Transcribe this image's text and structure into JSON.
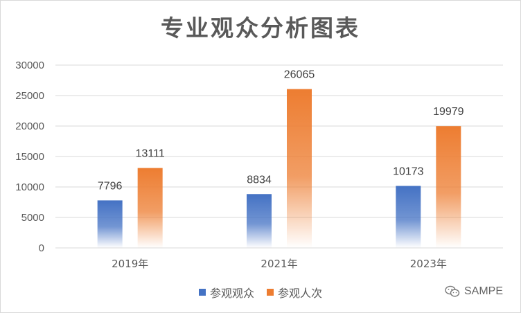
{
  "chart_data": {
    "type": "bar",
    "title": "专业观众分析图表",
    "categories": [
      "2019年",
      "2021年",
      "2023年"
    ],
    "series": [
      {
        "name": "参观观众",
        "values": [
          7796,
          8834,
          10173
        ],
        "color": "#4472c4"
      },
      {
        "name": "参观人次",
        "values": [
          13111,
          26065,
          19979
        ],
        "color": "#ed7d31"
      }
    ],
    "ylim": [
      0,
      30000
    ],
    "yticks": [
      0,
      5000,
      10000,
      15000,
      20000,
      25000,
      30000
    ],
    "grid": true,
    "legend_position": "bottom"
  },
  "watermark": {
    "text": "SAMPE",
    "icon": "wechat-icon"
  }
}
